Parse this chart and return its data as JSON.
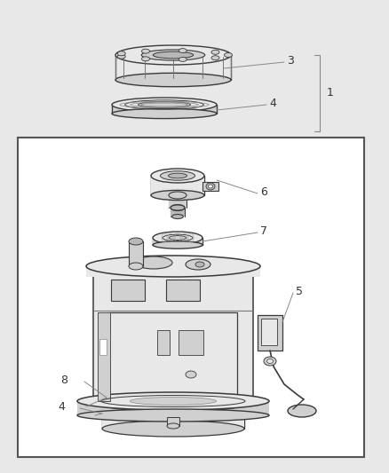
{
  "bg_color": "#e8e8e8",
  "inner_bg": "#f5f5f5",
  "box_bg": "#ffffff",
  "lc": "#3a3a3a",
  "lc_light": "#888888",
  "fill_light": "#e8e8e8",
  "fill_mid": "#d0d0d0",
  "fill_dark": "#b8b8b8",
  "fig_w": 4.38,
  "fig_h": 5.33,
  "dpi": 100
}
